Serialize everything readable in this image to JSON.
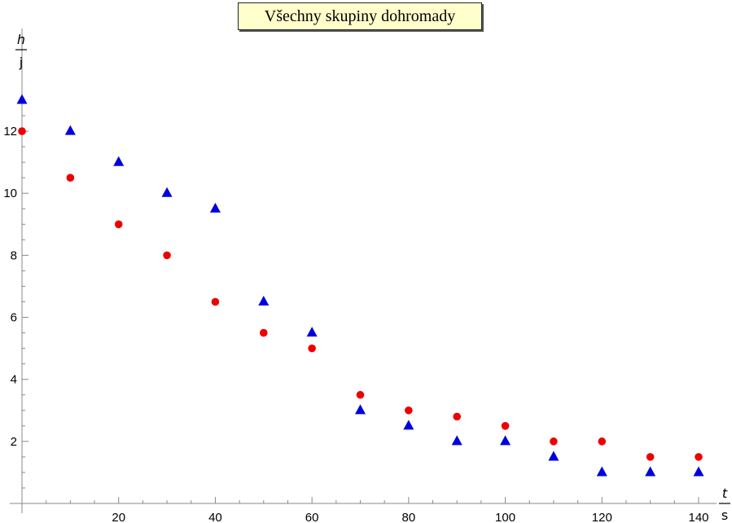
{
  "chart_data": {
    "type": "scatter",
    "title": "Všechny skupiny dohromady",
    "xlabel": {
      "numerator": "t",
      "denominator": "s"
    },
    "ylabel": {
      "numerator": "h",
      "denominator": "j"
    },
    "xlim": [
      0,
      140
    ],
    "ylim": [
      0,
      13
    ],
    "x_ticks": [
      20,
      40,
      60,
      80,
      100,
      120,
      140
    ],
    "y_ticks": [
      2,
      4,
      6,
      8,
      10,
      12
    ],
    "grid": false,
    "series": [
      {
        "marker": "circle",
        "color": "#ee0000",
        "points": [
          [
            0,
            12
          ],
          [
            10,
            10.5
          ],
          [
            20,
            9
          ],
          [
            30,
            8
          ],
          [
            40,
            6.5
          ],
          [
            50,
            5.5
          ],
          [
            60,
            5
          ],
          [
            70,
            3.5
          ],
          [
            80,
            3
          ],
          [
            90,
            2.8
          ],
          [
            100,
            2.5
          ],
          [
            110,
            2
          ],
          [
            120,
            2
          ],
          [
            130,
            1.5
          ],
          [
            140,
            1.5
          ]
        ]
      },
      {
        "marker": "triangle",
        "color": "#0000dd",
        "points": [
          [
            0,
            13
          ],
          [
            10,
            12
          ],
          [
            20,
            11
          ],
          [
            30,
            10
          ],
          [
            40,
            9.5
          ],
          [
            50,
            6.5
          ],
          [
            60,
            5.5
          ],
          [
            70,
            3
          ],
          [
            80,
            2.5
          ],
          [
            90,
            2
          ],
          [
            100,
            2
          ],
          [
            110,
            1.5
          ],
          [
            120,
            1
          ],
          [
            130,
            1
          ],
          [
            140,
            1
          ]
        ]
      }
    ]
  }
}
